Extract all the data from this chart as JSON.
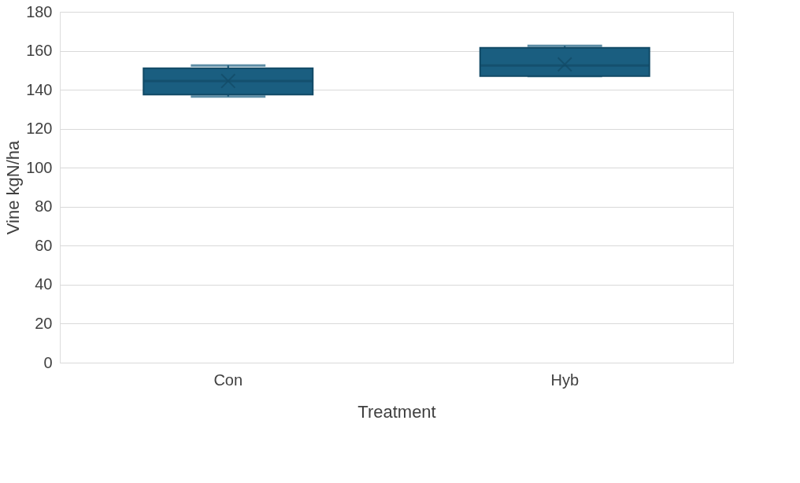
{
  "chart_data": {
    "type": "box",
    "xlabel": "Treatment",
    "ylabel": "Vine kgN/ha",
    "categories": [
      "Con",
      "Hyb"
    ],
    "series": [
      {
        "color": "#1a5e80",
        "boxes": [
          {
            "low": 136.5,
            "q1": 137.5,
            "median": 144.5,
            "q3": 151,
            "high": 152.5,
            "mean": 144.5
          },
          {
            "low": 147,
            "q1": 147,
            "median": 152.5,
            "q3": 161.5,
            "high": 162.5,
            "mean": 153
          }
        ]
      }
    ],
    "ylim": [
      0,
      180
    ],
    "yticks": [
      0,
      20,
      40,
      60,
      80,
      100,
      120,
      140,
      160,
      180
    ],
    "grid": "y"
  }
}
